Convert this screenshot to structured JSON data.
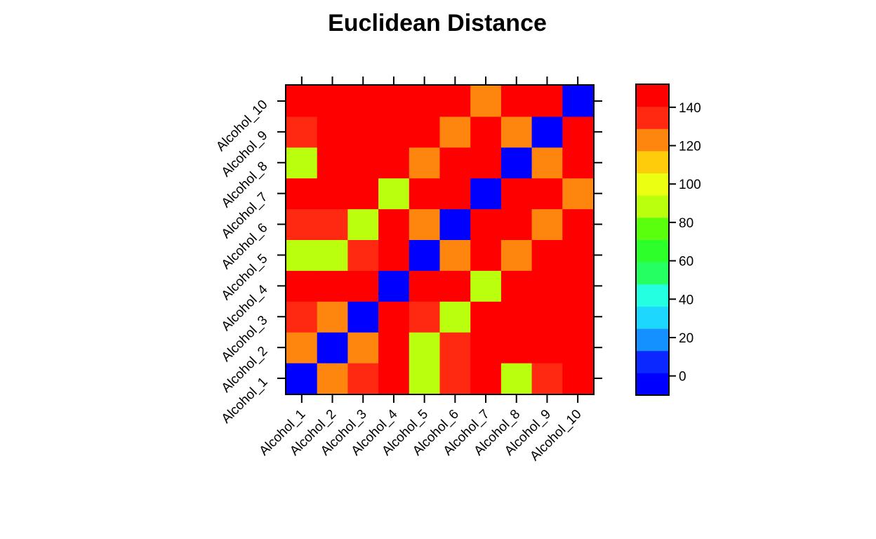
{
  "chart_data": {
    "type": "heatmap",
    "title": "Euclidean Distance",
    "x_categories": [
      "Alcohol_1",
      "Alcohol_2",
      "Alcohol_3",
      "Alcohol_4",
      "Alcohol_5",
      "Alcohol_6",
      "Alcohol_7",
      "Alcohol_8",
      "Alcohol_9",
      "Alcohol_10"
    ],
    "y_categories": [
      "Alcohol_1",
      "Alcohol_2",
      "Alcohol_3",
      "Alcohol_4",
      "Alcohol_5",
      "Alcohol_6",
      "Alcohol_7",
      "Alcohol_8",
      "Alcohol_9",
      "Alcohol_10"
    ],
    "values": [
      [
        0,
        120,
        140,
        150,
        90,
        130,
        150,
        90,
        130,
        150
      ],
      [
        120,
        0,
        120,
        150,
        90,
        130,
        150,
        145,
        145,
        150
      ],
      [
        140,
        120,
        0,
        150,
        130,
        90,
        150,
        150,
        145,
        150
      ],
      [
        150,
        150,
        150,
        0,
        150,
        150,
        90,
        145,
        150,
        145
      ],
      [
        90,
        90,
        130,
        150,
        0,
        120,
        150,
        120,
        145,
        150
      ],
      [
        130,
        130,
        90,
        150,
        120,
        0,
        150,
        145,
        120,
        150
      ],
      [
        150,
        150,
        150,
        90,
        150,
        150,
        0,
        150,
        150,
        120
      ],
      [
        90,
        145,
        150,
        145,
        120,
        145,
        150,
        0,
        120,
        150
      ],
      [
        130,
        145,
        145,
        150,
        145,
        120,
        150,
        120,
        0,
        150
      ],
      [
        150,
        150,
        150,
        145,
        150,
        150,
        120,
        150,
        150,
        0
      ]
    ],
    "colorbar": {
      "ticks": [
        0,
        20,
        40,
        60,
        80,
        100,
        120,
        140
      ],
      "range": [
        -10,
        152
      ],
      "colors": [
        "#0000FF",
        "#0A28FF",
        "#1490FF",
        "#1ED7FF",
        "#23FFE0",
        "#25FF62",
        "#2DFF2A",
        "#5AFF0E",
        "#B9FF0E",
        "#EBFF12",
        "#FFCC0B",
        "#FF860E",
        "#FF2810",
        "#FF0000"
      ]
    }
  }
}
